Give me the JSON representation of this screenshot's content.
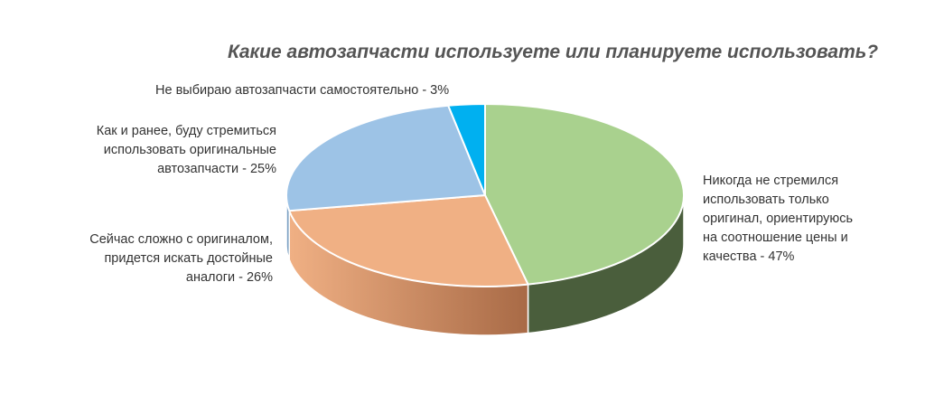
{
  "chart_data": {
    "type": "pie",
    "style": "3d",
    "title": "Какие автозапчасти используете или планируете использовать?",
    "start": "12 o'clock",
    "direction": "clockwise",
    "slices": [
      {
        "label": "Никогда не стремился\nиспользовать только\nоригинал, ориентируюсь\nна соотношение цены и\nкачества - 47%",
        "value": 47,
        "color": "#a9d18e",
        "side_color": "#4a5e3c"
      },
      {
        "label": "Сейчас сложно с оригиналом,\nпридется искать достойные\nаналоги - 26%",
        "value": 26,
        "color": "#f0b084",
        "side_color": "#a86a46"
      },
      {
        "label": "Как и ранее, буду стремиться\nиспользовать оригинальные\nавтозапчасти - 25%",
        "value": 25,
        "color": "#9dc3e6",
        "side_color": "#5a7fa0"
      },
      {
        "label": "Не выбираю автозапчасти самостоятельно - 3%",
        "value": 3,
        "color": "#00b0f0",
        "side_color": "#0077a8"
      }
    ]
  }
}
